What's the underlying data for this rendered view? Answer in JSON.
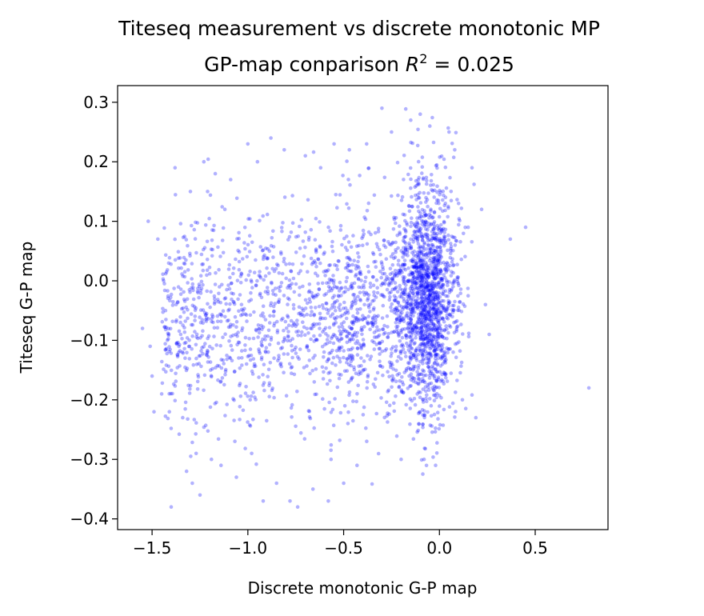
{
  "chart_data": {
    "type": "scatter",
    "title_line1": "Titeseq measurement vs discrete monotonic MP",
    "title_line2_prefix": "GP-map conparison ",
    "title_line2_r": "R",
    "title_line2_exp": "2",
    "title_line2_suffix": " = 0.025",
    "xlabel": "Discrete monotonic G-P map",
    "ylabel": "Titeseq G-P map",
    "xlim": [
      -1.68,
      0.88
    ],
    "ylim": [
      -0.418,
      0.328
    ],
    "xticks": [
      -1.5,
      -1.0,
      -0.5,
      0.0,
      0.5
    ],
    "xtick_labels": [
      "−1.5",
      "−1.0",
      "−0.5",
      "0.0",
      "0.5"
    ],
    "yticks": [
      0.3,
      0.2,
      0.1,
      0.0,
      -0.1,
      -0.2,
      -0.3,
      -0.4
    ],
    "ytick_labels": [
      "0.3",
      "0.2",
      "0.1",
      "0.0",
      "−0.1",
      "−0.2",
      "−0.3",
      "−0.4"
    ],
    "series": [
      {
        "color": "#0000ff",
        "opacity": 0.3,
        "note_points": "distribution approximates the original cloud: dense cluster near x≈0 and sparse spread toward x≈-1.5",
        "points": [
          [
            -1.55,
            -0.08
          ],
          [
            -1.52,
            0.1
          ],
          [
            -1.51,
            -0.11
          ],
          [
            -1.5,
            -0.16
          ],
          [
            -1.49,
            -0.22
          ],
          [
            -1.47,
            0.07
          ],
          [
            -1.45,
            -0.19
          ],
          [
            -1.44,
            0.0
          ],
          [
            -1.43,
            -0.05
          ],
          [
            -1.41,
            -0.22
          ],
          [
            -1.4,
            -0.38
          ],
          [
            -1.38,
            0.19
          ],
          [
            -1.36,
            -0.11
          ],
          [
            -1.34,
            -0.23
          ],
          [
            -1.32,
            -0.32
          ],
          [
            -1.3,
            0.15
          ],
          [
            -1.29,
            -0.34
          ],
          [
            -1.27,
            -0.29
          ],
          [
            -1.25,
            -0.36
          ],
          [
            -1.23,
            0.2
          ],
          [
            -1.21,
            0.15
          ],
          [
            -1.19,
            -0.3
          ],
          [
            -1.17,
            0.18
          ],
          [
            -1.14,
            -0.31
          ],
          [
            -1.12,
            0.12
          ],
          [
            -1.09,
            0.17
          ],
          [
            -1.06,
            -0.33
          ],
          [
            -1.0,
            0.23
          ],
          [
            -0.98,
            -0.29
          ],
          [
            -0.95,
            0.2
          ],
          [
            -0.92,
            -0.37
          ],
          [
            -0.88,
            0.24
          ],
          [
            -0.85,
            -0.34
          ],
          [
            -0.81,
            0.22
          ],
          [
            -0.78,
            -0.37
          ],
          [
            -0.74,
            -0.38
          ],
          [
            -0.7,
            0.21
          ],
          [
            -0.66,
            -0.35
          ],
          [
            -0.62,
            0.19
          ],
          [
            -0.58,
            -0.37
          ],
          [
            -0.55,
            0.23
          ],
          [
            -0.5,
            -0.34
          ],
          [
            -0.47,
            0.22
          ],
          [
            -0.43,
            -0.31
          ],
          [
            -0.38,
            0.23
          ],
          [
            -0.3,
            0.29
          ],
          [
            -0.25,
            0.25
          ],
          [
            -0.2,
            -0.3
          ],
          [
            -0.15,
            0.27
          ],
          [
            -0.1,
            0.28
          ],
          [
            -0.08,
            -0.3
          ],
          [
            -0.05,
            0.26
          ],
          [
            -0.02,
            -0.31
          ],
          [
            0.05,
            0.25
          ],
          [
            0.08,
            0.22
          ],
          [
            0.1,
            0.13
          ],
          [
            0.12,
            -0.2
          ],
          [
            0.15,
            0.09
          ],
          [
            0.17,
            0.19
          ],
          [
            0.19,
            -0.23
          ],
          [
            0.22,
            0.12
          ],
          [
            0.24,
            -0.04
          ],
          [
            0.26,
            -0.09
          ],
          [
            0.37,
            0.07
          ],
          [
            0.45,
            0.09
          ],
          [
            0.78,
            -0.18
          ]
        ]
      }
    ],
    "n_generated_points": 3000
  }
}
